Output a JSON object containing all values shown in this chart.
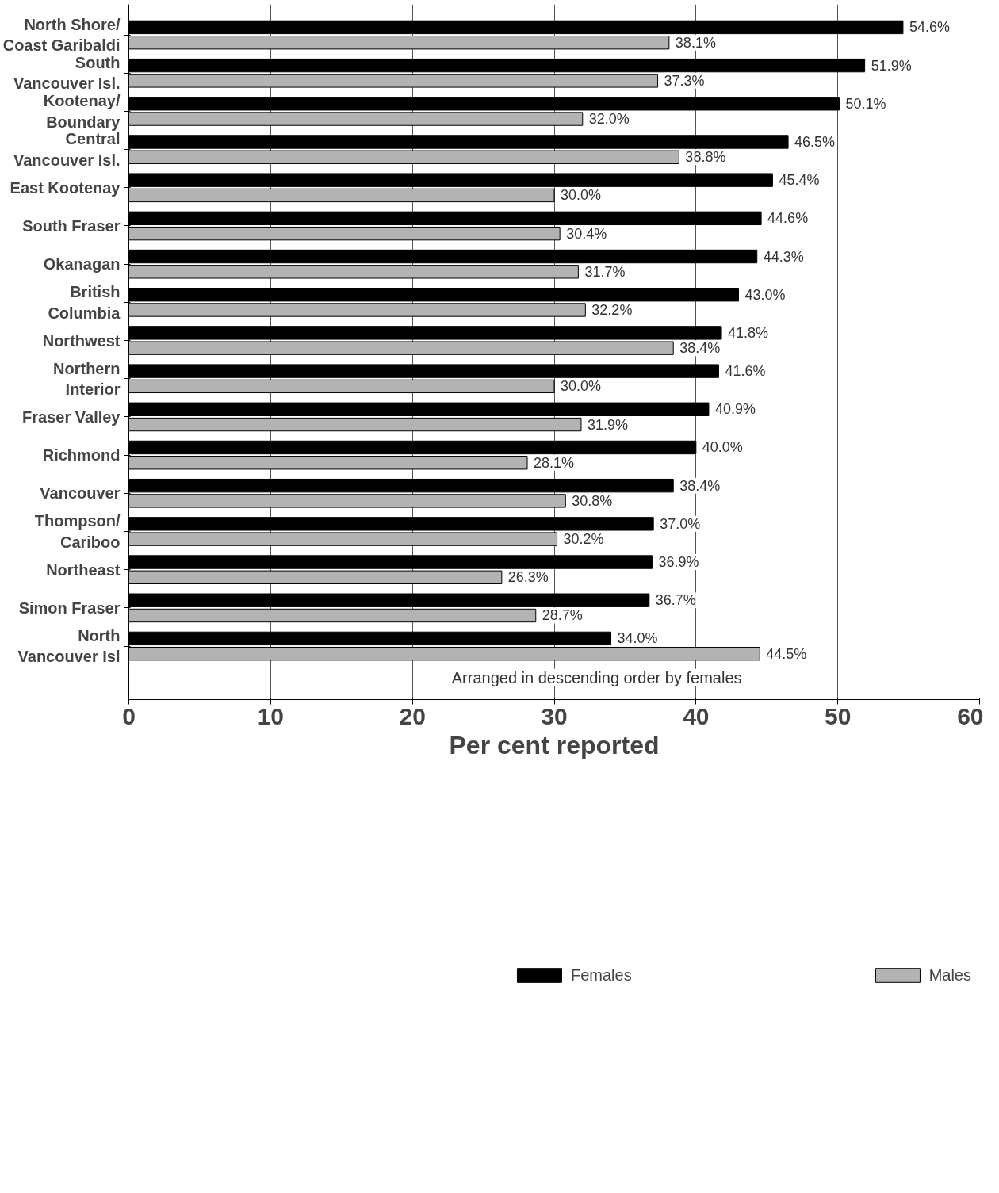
{
  "chart_data": {
    "type": "bar",
    "orientation": "horizontal",
    "xlabel": "Per cent reported",
    "categories": [
      "North Shore/\nCoast Garibaldi",
      "South\nVancouver Isl.",
      "Kootenay/\nBoundary",
      "Central\nVancouver Isl.",
      "East Kootenay",
      "South Fraser",
      "Okanagan",
      "British\nColumbia",
      "Northwest",
      "Northern\nInterior",
      "Fraser Valley",
      "Richmond",
      "Vancouver",
      "Thompson/\nCariboo",
      "Northeast",
      "Simon Fraser",
      "North\nVancouver Isl"
    ],
    "series": [
      {
        "name": "Females",
        "color": "#000000",
        "values": [
          54.6,
          51.9,
          50.1,
          46.5,
          45.4,
          44.6,
          44.3,
          43.0,
          41.8,
          41.6,
          40.9,
          40.0,
          38.4,
          37.0,
          36.9,
          36.7,
          34.0
        ],
        "value_labels": [
          "54.6%",
          "51.9%",
          "50.1%",
          "46.5%",
          "45.4%",
          "44.6%",
          "44.3%",
          "43.0%",
          "41.8%",
          "41.6%",
          "40.9%",
          "40.0%",
          "38.4%",
          "37.0%",
          "36.9%",
          "36.7%",
          "34.0%"
        ]
      },
      {
        "name": "Males",
        "color": "#b3b3b3",
        "values": [
          38.1,
          37.3,
          32.0,
          38.8,
          30.0,
          30.4,
          31.7,
          32.2,
          38.4,
          30.0,
          31.9,
          28.1,
          30.8,
          30.2,
          26.3,
          28.7,
          44.5
        ],
        "value_labels": [
          "38.1%",
          "37.3%",
          "32.0%",
          "38.8%",
          "30.0%",
          "30.4%",
          "31.7%",
          "32.2%",
          "38.4%",
          "30.0%",
          "31.9%",
          "28.1%",
          "30.8%",
          "30.2%",
          "26.3%",
          "28.7%",
          "44.5%"
        ]
      }
    ],
    "xlim": [
      0,
      60
    ],
    "xticks": [
      0,
      10,
      20,
      30,
      40,
      50,
      60
    ],
    "grid": "x",
    "legend": "bottom",
    "annotations": [
      "Arranged in descending order by females"
    ]
  }
}
